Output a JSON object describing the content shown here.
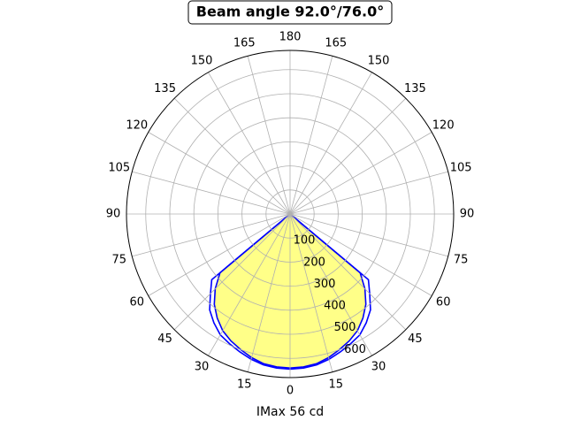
{
  "chart_data": {
    "type": "polar",
    "title": "Beam angle 92.0°/76.0°",
    "x_label": "IMax 56 cd",
    "x": [
      -60,
      -55,
      -50,
      -45,
      -40,
      -35,
      -30,
      -25,
      -20,
      -15,
      -10,
      -5,
      0,
      5,
      10,
      15,
      20,
      25,
      30,
      35,
      40,
      45,
      50,
      55,
      60
    ],
    "series": [
      {
        "color": "#0000ff",
        "fill": "#ffff88",
        "values": [
          0,
          0,
          380,
          440,
          490,
          528,
          560,
          582,
          600,
          618,
          632,
          638,
          640,
          638,
          632,
          618,
          600,
          582,
          560,
          528,
          490,
          440,
          380,
          0,
          0
        ]
      },
      {
        "color": "#0000ff",
        "values": [
          0,
          0,
          425,
          468,
          520,
          552,
          580,
          595,
          610,
          625,
          637,
          643,
          645,
          643,
          637,
          625,
          610,
          595,
          580,
          552,
          520,
          468,
          425,
          0,
          0
        ]
      }
    ],
    "ylim": [
      0,
      680
    ],
    "yticks": [
      100,
      200,
      300,
      400,
      500,
      600
    ],
    "xticks": [
      0,
      15,
      30,
      45,
      60,
      75,
      90,
      105,
      120,
      135,
      150,
      165,
      180,
      {
        "value": 195,
        "label": "165"
      },
      {
        "value": 210,
        "label": "150"
      },
      {
        "value": 225,
        "label": "135"
      },
      {
        "value": 240,
        "label": "120"
      },
      {
        "value": 255,
        "label": "105"
      },
      {
        "value": 270,
        "label": "90"
      },
      {
        "value": 285,
        "label": "75"
      },
      {
        "value": 300,
        "label": "60"
      },
      {
        "value": 315,
        "label": "45"
      },
      {
        "value": 330,
        "label": "30"
      },
      {
        "value": 345,
        "label": "15"
      }
    ],
    "grid": true
  }
}
